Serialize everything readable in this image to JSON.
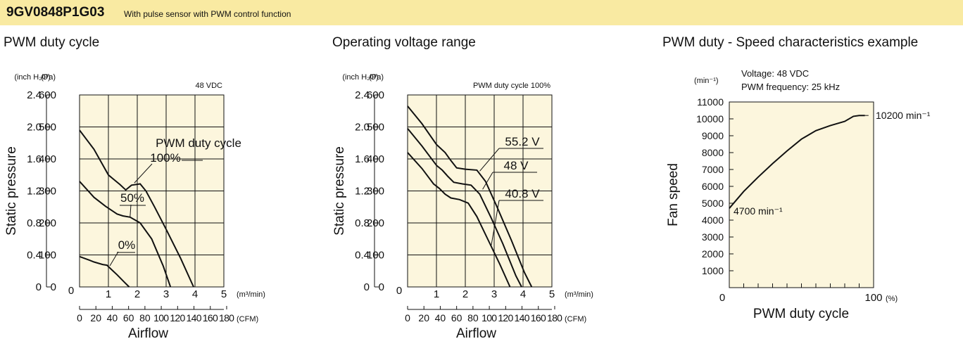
{
  "header": {
    "model": "9GV0848P1G03",
    "description": "With pulse sensor with PWM control function"
  },
  "panels": {
    "left_title": "PWM duty cycle",
    "mid_title": "Operating voltage range",
    "right_title": "PWM duty - Speed characteristics example"
  },
  "chart_data": [
    {
      "type": "line",
      "title": "PWM duty cycle",
      "note": "48 VDC",
      "ylabel": "Static pressure",
      "xlabel": "Airflow",
      "y_units": [
        "(inch H₂O)",
        "(Pa)"
      ],
      "x_units": [
        "(m³/min)",
        "(CFM)"
      ],
      "xlim": [
        0,
        5
      ],
      "ylim": [
        0,
        600
      ],
      "x_ticks": [
        "1",
        "2",
        "3",
        "4",
        "5"
      ],
      "x_origin_label": "0",
      "y_ticks_pa": [
        "100",
        "200",
        "300",
        "400",
        "500",
        "600"
      ],
      "y_origin_label_pa": "0",
      "y_ticks_inch": [
        "0",
        "0.4",
        "0.8",
        "1.2",
        "1.6",
        "2.0",
        "2.4"
      ],
      "cfm_ticks": [
        "0",
        "20",
        "40",
        "60",
        "80",
        "100",
        "120",
        "140",
        "160",
        "180"
      ],
      "legend_title": "PWM duty cycle",
      "series": [
        {
          "name": "100%",
          "points": [
            [
              0,
              490
            ],
            [
              0.5,
              430
            ],
            [
              1,
              350
            ],
            [
              1.2,
              335
            ],
            [
              1.4,
              320
            ],
            [
              1.6,
              303
            ],
            [
              1.8,
              318
            ],
            [
              2.1,
              322
            ],
            [
              2.3,
              300
            ],
            [
              2.6,
              250
            ],
            [
              3.0,
              180
            ],
            [
              3.5,
              90
            ],
            [
              3.95,
              0
            ]
          ]
        },
        {
          "name": "50%",
          "points": [
            [
              0,
              330
            ],
            [
              0.5,
              280
            ],
            [
              0.9,
              252
            ],
            [
              1.1,
              240
            ],
            [
              1.3,
              228
            ],
            [
              1.5,
              222
            ],
            [
              1.75,
              218
            ],
            [
              2.1,
              200
            ],
            [
              2.5,
              150
            ],
            [
              2.9,
              65
            ],
            [
              3.15,
              0
            ]
          ]
        },
        {
          "name": "0%",
          "points": [
            [
              0,
              95
            ],
            [
              0.3,
              85
            ],
            [
              0.5,
              78
            ],
            [
              0.8,
              70
            ],
            [
              0.95,
              68
            ],
            [
              1.1,
              55
            ],
            [
              1.3,
              38
            ],
            [
              1.55,
              15
            ],
            [
              1.72,
              0
            ]
          ]
        }
      ]
    },
    {
      "type": "line",
      "title": "Operating voltage range",
      "note": "PWM duty cycle 100%",
      "ylabel": "Static pressure",
      "xlabel": "Airflow",
      "y_units": [
        "(inch H₂O)",
        "(Pa)"
      ],
      "x_units": [
        "(m³/min)",
        "(CFM)"
      ],
      "xlim": [
        0,
        5
      ],
      "ylim": [
        0,
        600
      ],
      "x_ticks": [
        "1",
        "2",
        "3",
        "4",
        "5"
      ],
      "x_origin_label": "0",
      "y_ticks_pa": [
        "100",
        "200",
        "300",
        "400",
        "500",
        "600"
      ],
      "y_origin_label_pa": "0",
      "y_ticks_inch": [
        "0",
        "0.4",
        "0.8",
        "1.2",
        "1.6",
        "2.0",
        "2.4"
      ],
      "cfm_ticks": [
        "0",
        "20",
        "40",
        "60",
        "80",
        "100",
        "120",
        "140",
        "160",
        "180"
      ],
      "series": [
        {
          "name": "55.2 V",
          "points": [
            [
              0,
              565
            ],
            [
              0.5,
              510
            ],
            [
              1,
              445
            ],
            [
              1.3,
              420
            ],
            [
              1.5,
              395
            ],
            [
              1.7,
              372
            ],
            [
              2,
              368
            ],
            [
              2.4,
              365
            ],
            [
              2.7,
              330
            ],
            [
              3.1,
              250
            ],
            [
              3.6,
              145
            ],
            [
              4.05,
              45
            ],
            [
              4.3,
              0
            ]
          ]
        },
        {
          "name": "48 V",
          "points": [
            [
              0,
              495
            ],
            [
              0.5,
              440
            ],
            [
              1,
              380
            ],
            [
              1.2,
              365
            ],
            [
              1.4,
              345
            ],
            [
              1.6,
              327
            ],
            [
              1.9,
              322
            ],
            [
              2.2,
              318
            ],
            [
              2.5,
              290
            ],
            [
              2.9,
              215
            ],
            [
              3.3,
              135
            ],
            [
              3.75,
              35
            ],
            [
              3.95,
              0
            ]
          ]
        },
        {
          "name": "40.8 V",
          "points": [
            [
              0,
              420
            ],
            [
              0.5,
              370
            ],
            [
              0.9,
              322
            ],
            [
              1.1,
              308
            ],
            [
              1.3,
              290
            ],
            [
              1.5,
              278
            ],
            [
              1.8,
              273
            ],
            [
              2.1,
              262
            ],
            [
              2.4,
              220
            ],
            [
              2.8,
              145
            ],
            [
              3.2,
              70
            ],
            [
              3.55,
              0
            ]
          ]
        }
      ]
    },
    {
      "type": "line",
      "title": "PWM duty - Speed characteristics example",
      "ylabel": "Fan speed",
      "xlabel": "PWM duty cycle",
      "y_unit": "(min⁻¹)",
      "x_unit": "(%)",
      "notes": [
        "Voltage: 48 VDC",
        "PWM frequency: 25 kHz"
      ],
      "xlim": [
        0,
        100
      ],
      "ylim": [
        0,
        11000
      ],
      "x_origin_label": "0",
      "x_end_label": "100",
      "y_ticks": [
        "1000",
        "2000",
        "3000",
        "4000",
        "5000",
        "6000",
        "7000",
        "8000",
        "9000",
        "10000",
        "11000"
      ],
      "start_label": "4700 min⁻¹",
      "end_label": "10200 min⁻¹",
      "series": [
        {
          "name": "",
          "points": [
            [
              0,
              4700
            ],
            [
              10,
              5700
            ],
            [
              20,
              6550
            ],
            [
              30,
              7350
            ],
            [
              40,
              8100
            ],
            [
              50,
              8800
            ],
            [
              60,
              9300
            ],
            [
              70,
              9600
            ],
            [
              80,
              9850
            ],
            [
              86,
              10150
            ],
            [
              90,
              10200
            ],
            [
              94,
              10200
            ]
          ]
        }
      ]
    }
  ]
}
